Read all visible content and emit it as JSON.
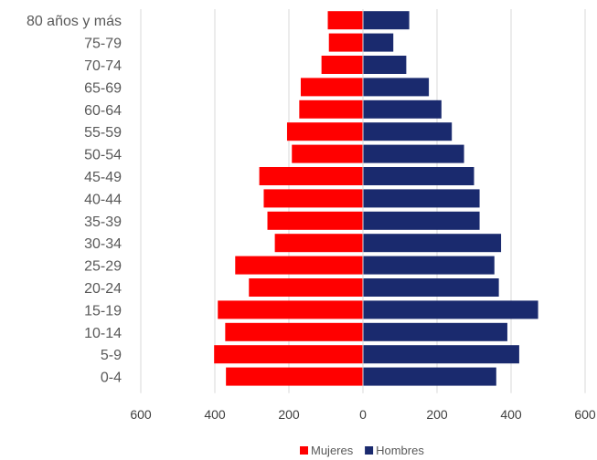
{
  "chart_data": {
    "type": "bar",
    "orientation": "horizontal",
    "layout": "population-pyramid",
    "categories": [
      "80 años y más",
      "75-79",
      "70-74",
      "65-69",
      "60-64",
      "55-59",
      "50-54",
      "45-49",
      "40-44",
      "35-39",
      "30-34",
      "25-29",
      "20-24",
      "15-19",
      "10-14",
      "5-9",
      "0-4"
    ],
    "series": [
      {
        "name": "Mujeres",
        "color": "#ff0000",
        "side": "left",
        "values": [
          95,
          92,
          112,
          168,
          172,
          205,
          192,
          280,
          268,
          258,
          238,
          345,
          308,
          392,
          372,
          402,
          370
        ]
      },
      {
        "name": "Hombres",
        "color": "#1a2a6e",
        "side": "right",
        "values": [
          125,
          82,
          117,
          178,
          212,
          240,
          273,
          300,
          315,
          315,
          373,
          355,
          367,
          473,
          390,
          422,
          360
        ]
      }
    ],
    "xlim": [
      -600,
      600
    ],
    "xticks": [
      -600,
      -400,
      -200,
      0,
      200,
      400,
      600
    ],
    "xtick_labels": [
      "600",
      "400",
      "200",
      "0",
      "200",
      "400",
      "600"
    ],
    "grid": "vertical",
    "legend": "bottom-center"
  }
}
